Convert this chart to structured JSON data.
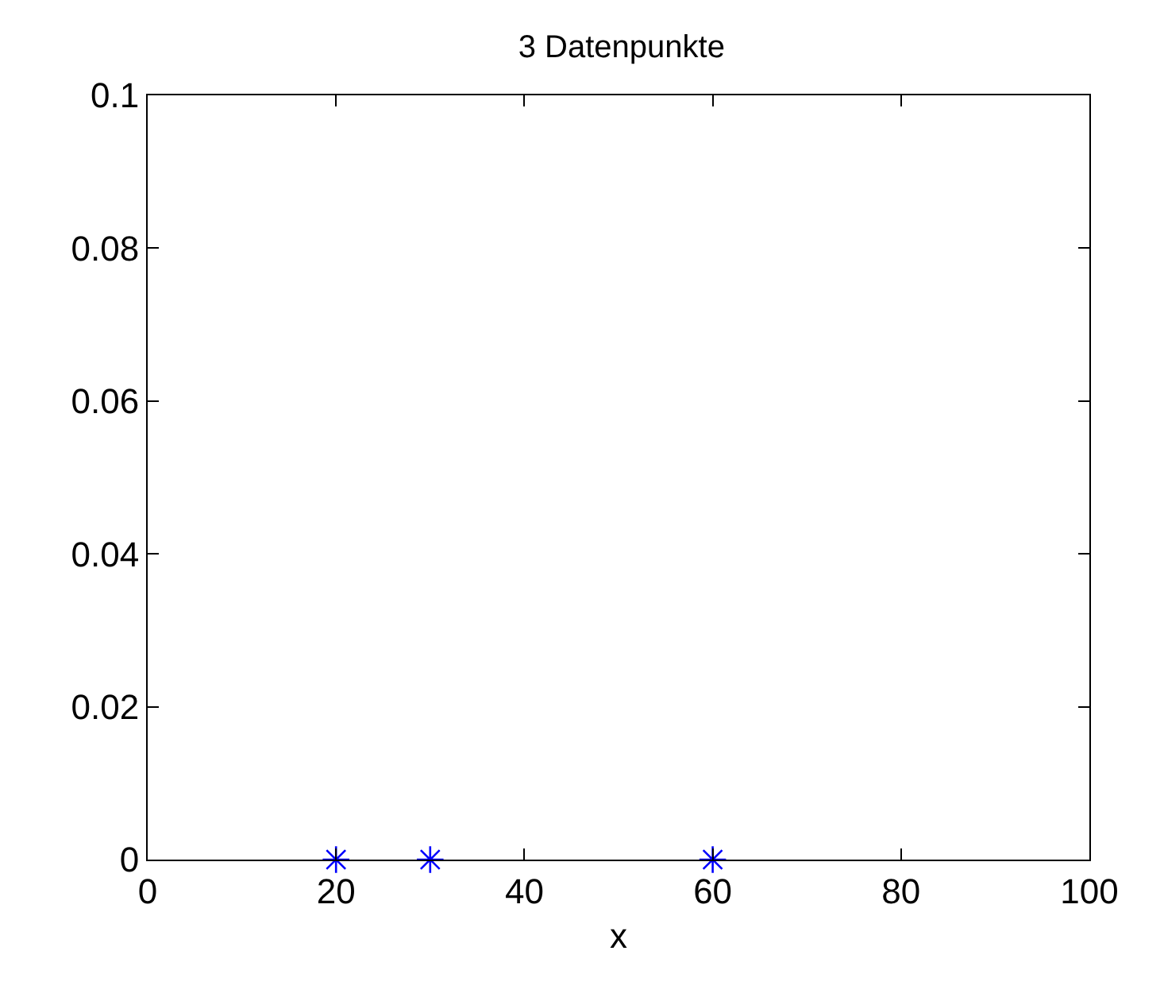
{
  "chart_data": {
    "type": "scatter",
    "title": "3 Datenpunkte",
    "xlabel": "x",
    "x": [
      20,
      30,
      60
    ],
    "series": [
      {
        "color": "#0000ff",
        "values": [
          0,
          0,
          0
        ]
      }
    ],
    "xlim": [
      0,
      100
    ],
    "xticks": [
      0,
      20,
      40,
      60,
      80,
      100
    ],
    "ylim": [
      0,
      0.1
    ],
    "yticks": [
      0,
      0.02,
      0.04,
      0.06,
      0.08,
      0.1
    ],
    "grid": false,
    "legend": false,
    "marker": "cross"
  }
}
